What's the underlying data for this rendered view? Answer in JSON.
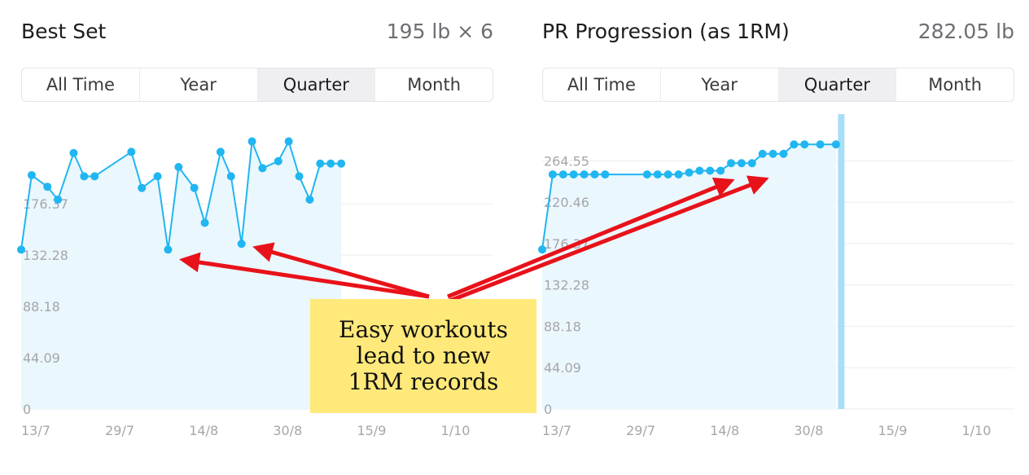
{
  "tabs": [
    "All Time",
    "Year",
    "Quarter",
    "Month"
  ],
  "colors": {
    "series": "#20b6f1",
    "area": "#eaf7fd",
    "grid": "#eeeeee",
    "arrow": "#e8121a",
    "annotation_bg": "#ffe97a",
    "marker": "#a9def9"
  },
  "annotation": "Easy workouts\nlead to new\n1RM records",
  "chart_data": [
    {
      "type": "line",
      "title": "Best Set",
      "value": "195 lb × 6",
      "selected_tab": "Quarter",
      "ylim": [
        0,
        250
      ],
      "y_ticks": [
        "0",
        "44.09",
        "88.18",
        "132.28",
        "176.37"
      ],
      "y_tick_values": [
        0,
        44.09,
        88.18,
        132.28,
        176.37
      ],
      "x_ticks": [
        "13/7",
        "29/7",
        "14/8",
        "30/8",
        "15/9",
        "1/10"
      ],
      "x_tick_days": [
        0,
        16,
        32,
        48,
        64,
        80
      ],
      "xlim": [
        0,
        90
      ],
      "x_unit": "days from 13/7",
      "x": [
        0,
        2,
        5,
        7,
        10,
        12,
        14,
        21,
        23,
        26,
        28,
        30,
        33,
        35,
        38,
        40,
        42,
        44,
        46,
        49,
        51,
        53,
        55,
        57,
        59,
        61
      ],
      "y": [
        137,
        201,
        191,
        180,
        220,
        200,
        200,
        221,
        190,
        200,
        137,
        208,
        190,
        160,
        221,
        200,
        142,
        230,
        207,
        213,
        230,
        200,
        180,
        211,
        211,
        211
      ]
    },
    {
      "type": "line",
      "title": "PR Progression (as 1RM)",
      "value": "282.05 lb",
      "selected_tab": "Quarter",
      "ylim": [
        0,
        310
      ],
      "y_ticks": [
        "0",
        "44.09",
        "88.18",
        "132.28",
        "176.37",
        "220.46",
        "264.55"
      ],
      "y_tick_values": [
        0,
        44.09,
        88.18,
        132.28,
        176.37,
        220.46,
        264.55
      ],
      "x_ticks": [
        "13/7",
        "29/7",
        "14/8",
        "30/8",
        "15/9",
        "1/10"
      ],
      "x_tick_days": [
        0,
        16,
        32,
        48,
        64,
        80
      ],
      "xlim": [
        0,
        90
      ],
      "x_unit": "days from 13/7",
      "x": [
        0,
        2,
        4,
        6,
        8,
        10,
        12,
        20,
        22,
        24,
        26,
        28,
        30,
        32,
        34,
        36,
        38,
        40,
        42,
        44,
        46,
        48,
        50,
        53,
        56
      ],
      "y": [
        170,
        250,
        250,
        250,
        250,
        250,
        250,
        250,
        250,
        250,
        250,
        252,
        254,
        254,
        254,
        262,
        262,
        262,
        272,
        272,
        272,
        282,
        282,
        282,
        282
      ],
      "highlight_day": 57
    }
  ]
}
